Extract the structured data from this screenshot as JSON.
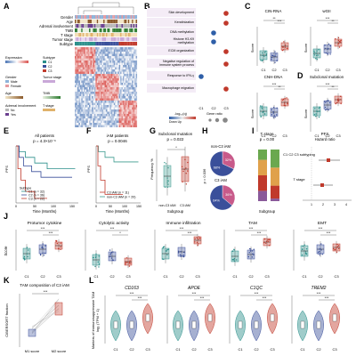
{
  "panels": {
    "A": {
      "label": "A",
      "rows": [
        "Gender",
        "Age",
        "Adrenal involvement",
        "TMB",
        "T stage",
        "Tumor stage",
        "Subtype"
      ],
      "legend_titles": [
        "Expression",
        "Subtype",
        "Gender",
        "Tumor stage",
        "Age",
        "TMB",
        "Adrenal involvement",
        "T stage"
      ],
      "legend_values": [
        "C1",
        "C2",
        "C3",
        "Male",
        "Female",
        "No",
        "Yes"
      ],
      "colors": {
        "c1": "#2a8f8a",
        "c2": "#3a4f9a",
        "c3": "#c0392b",
        "high": "#d9534f",
        "low": "#4a74b4"
      }
    },
    "B": {
      "label": "B",
      "terms": [
        "Skin development",
        "Keratinization",
        "DNA methylation",
        "Histone H3-K9 methylation",
        "ECM organization",
        "Negative regulation of immune system process",
        "Response to IFN-γ",
        "Macrophage migration"
      ],
      "xcats": [
        "C1",
        "C2",
        "C3"
      ],
      "dots": [
        [
          0,
          0,
          1
        ],
        [
          0,
          0,
          1
        ],
        [
          0,
          1,
          0
        ],
        [
          0,
          1,
          0
        ],
        [
          0,
          0,
          1
        ],
        [
          0,
          0,
          1
        ],
        [
          1,
          0,
          0
        ],
        [
          0,
          0,
          1
        ]
      ],
      "legend_p": "-log₁₀(q)",
      "legend_gr": "Gene ratio",
      "legend_dir": "Down   Up",
      "ticks_p": [
        "0.6",
        "0.4",
        "0.2"
      ]
    },
    "C": {
      "label": "C",
      "titles": [
        "CIN-RNA",
        "wGII",
        "CNH-DNA"
      ],
      "ylabel": "Score"
    },
    "D": {
      "label": "D",
      "title": "Subclonal mutation",
      "ylabel": "Score"
    },
    "E": {
      "label": "E",
      "title": "All patients",
      "p": "p = 4.3×10⁻⁶",
      "ylabel": "PFS",
      "xlabel": "Time (Months)",
      "legend": [
        "Subtype",
        "C1 (n = 32)",
        "C2 (n = 36)",
        "C3 (n = 22)"
      ],
      "xticks": [
        "0",
        "50",
        "100",
        "150"
      ]
    },
    "F": {
      "label": "F",
      "title": "iAM patients",
      "p": "p = 0.0046",
      "ylabel": "PFS",
      "xlabel": "Time (Months)",
      "legend": [
        "C3 iAM (n = 11)",
        "non-C3 iAM (n = 20)"
      ],
      "xticks": [
        "0",
        "50",
        "100",
        "150"
      ]
    },
    "G": {
      "label": "G",
      "title": "Subclonal mutation",
      "p": "p = 0.022",
      "ylabel": "Frequency %",
      "xlabel": "Subgroup",
      "cats": [
        "non-C3 iAM",
        "C3 iAM"
      ]
    },
    "H": {
      "label": "H",
      "title1": "non-C3 iAM",
      "title2": "C3 iAM",
      "p": "p = 0.036",
      "pie1": [
        {
          "label": "32%",
          "v": 32
        },
        {
          "label": "68%",
          "v": 68
        }
      ],
      "pie2": [
        {
          "label": "36%",
          "v": 36
        },
        {
          "label": "64%",
          "v": 64
        }
      ]
    },
    "I": {
      "label": "I",
      "title": "T stage",
      "p": "p = 0.00",
      "xlabel": "Subgroup",
      "hr_title": "PFS",
      "hr_sub": "Hazard ratio",
      "rows": [
        "C1 C2 C3 subtyping",
        "T stage"
      ],
      "xticks": [
        "1",
        "2",
        "3",
        "4"
      ]
    },
    "J": {
      "label": "J",
      "titles": [
        "Protumor cytokine",
        "Cytolytic activity",
        "Immune infiltration",
        "TAM",
        "EMT"
      ],
      "ylabel": "Score",
      "xcats": [
        "C1",
        "C2",
        "C3"
      ]
    },
    "K": {
      "label": "K",
      "title": "TAM composition of C3 iAM",
      "ylabel": "CIBERSORT fraction",
      "xcats": [
        "M1 score",
        "M2 score"
      ]
    },
    "L": {
      "label": "L",
      "genes": [
        "CD163",
        "APOE",
        "C1QC",
        "TREM2"
      ],
      "ylabel": "Markers of immunosuppressive TAM",
      "ylabel2": "log₂ (TPM + 1)",
      "xcats": [
        "C1",
        "C2",
        "C3"
      ]
    }
  },
  "sig": {
    "s3": "***",
    "s2": "**",
    "s1": "*",
    "ns": "ns"
  }
}
